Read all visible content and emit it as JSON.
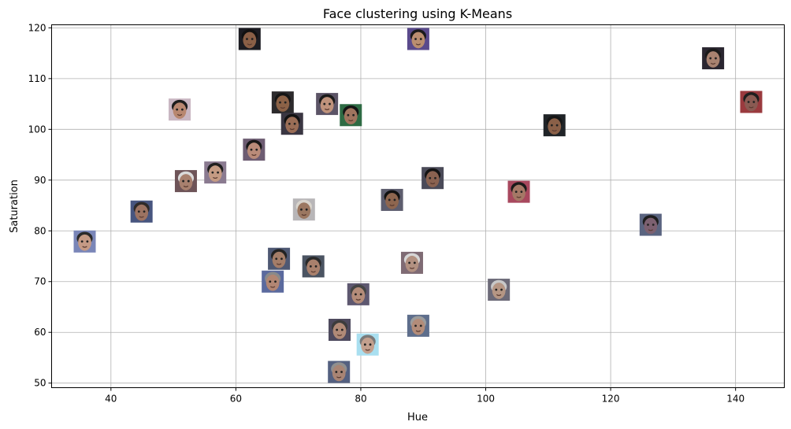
{
  "chart_data": {
    "type": "scatter",
    "title": "Face clustering using K-Means",
    "xlabel": "Hue",
    "ylabel": "Saturation",
    "xlim": [
      30.5,
      147.8
    ],
    "ylim": [
      49.1,
      120.6
    ],
    "xticks": [
      40,
      60,
      80,
      100,
      120,
      140
    ],
    "yticks": [
      50,
      60,
      70,
      80,
      90,
      100,
      110,
      120
    ],
    "grid": true,
    "marker": "face-thumbnail",
    "points": [
      {
        "x": 35.8,
        "y": 77.9,
        "skin": "#c59a85",
        "hair": "#2a2a2a",
        "bg": "#7a86b8"
      },
      {
        "x": 44.9,
        "y": 83.8,
        "skin": "#9c7362",
        "hair": "#2e2a28",
        "bg": "#47557f"
      },
      {
        "x": 51.0,
        "y": 103.9,
        "skin": "#b88770",
        "hair": "#1d1d1d",
        "bg": "#c9b6c2"
      },
      {
        "x": 52.0,
        "y": 89.8,
        "skin": "#a8806e",
        "hair": "#dadada",
        "bg": "#6e5458"
      },
      {
        "x": 56.7,
        "y": 91.5,
        "skin": "#c59b83",
        "hair": "#1f1f1f",
        "bg": "#8a7a90"
      },
      {
        "x": 62.2,
        "y": 117.8,
        "skin": "#8a5f46",
        "hair": "#111111",
        "bg": "#1c1c22"
      },
      {
        "x": 62.9,
        "y": 96.0,
        "skin": "#b98b79",
        "hair": "#181818",
        "bg": "#6d5c72"
      },
      {
        "x": 65.9,
        "y": 70.0,
        "skin": "#b28673",
        "hair": "#8a8a8a",
        "bg": "#5b6a9e"
      },
      {
        "x": 66.9,
        "y": 74.5,
        "skin": "#a47d68",
        "hair": "#222222",
        "bg": "#4e5873"
      },
      {
        "x": 67.5,
        "y": 105.3,
        "skin": "#8c6247",
        "hair": "#151515",
        "bg": "#2c2a2c"
      },
      {
        "x": 69.0,
        "y": 101.1,
        "skin": "#9a6d56",
        "hair": "#121212",
        "bg": "#3a3642"
      },
      {
        "x": 70.9,
        "y": 84.2,
        "skin": "#9b7760",
        "hair": "#d8d4cc",
        "bg": "#b8b6b8"
      },
      {
        "x": 72.4,
        "y": 73.0,
        "skin": "#a9806c",
        "hair": "#2a2a2a",
        "bg": "#4b5462"
      },
      {
        "x": 74.6,
        "y": 105.0,
        "skin": "#bf927b",
        "hair": "#1a1a1a",
        "bg": "#5c5466"
      },
      {
        "x": 76.5,
        "y": 52.2,
        "skin": "#a88474",
        "hair": "#8f8f8f",
        "bg": "#546080"
      },
      {
        "x": 76.6,
        "y": 60.5,
        "skin": "#b08a77",
        "hair": "#3c3c3c",
        "bg": "#4e4a5e"
      },
      {
        "x": 78.4,
        "y": 102.8,
        "skin": "#a0745e",
        "hair": "#141414",
        "bg": "#2e6b44"
      },
      {
        "x": 79.6,
        "y": 67.5,
        "skin": "#b48c79",
        "hair": "#444444",
        "bg": "#5e5870"
      },
      {
        "x": 81.1,
        "y": 57.6,
        "skin": "#c3a08e",
        "hair": "#7a7a7a",
        "bg": "#a9dff0"
      },
      {
        "x": 85.0,
        "y": 86.1,
        "skin": "#8e664f",
        "hair": "#121212",
        "bg": "#5d5d6e"
      },
      {
        "x": 88.2,
        "y": 73.7,
        "skin": "#b29181",
        "hair": "#d6d6d6",
        "bg": "#7f6b74"
      },
      {
        "x": 89.2,
        "y": 61.3,
        "skin": "#b38c79",
        "hair": "#9c9c9c",
        "bg": "#5e6e8c"
      },
      {
        "x": 89.2,
        "y": 117.8,
        "skin": "#ba8e70",
        "hair": "#1a1a1a",
        "bg": "#5a4a8c"
      },
      {
        "x": 91.5,
        "y": 90.4,
        "skin": "#8a6250",
        "hair": "#141414",
        "bg": "#4a4a58"
      },
      {
        "x": 102.1,
        "y": 68.4,
        "skin": "#b59684",
        "hair": "#c8c8c8",
        "bg": "#6c6a78"
      },
      {
        "x": 105.3,
        "y": 87.7,
        "skin": "#a57866",
        "hair": "#1a1a1a",
        "bg": "#a8485e"
      },
      {
        "x": 111.0,
        "y": 100.8,
        "skin": "#8a6048",
        "hair": "#161616",
        "bg": "#202428"
      },
      {
        "x": 126.4,
        "y": 81.2,
        "skin": "#7c6070",
        "hair": "#1e1e1e",
        "bg": "#5a6480"
      },
      {
        "x": 136.4,
        "y": 114.0,
        "skin": "#a88270",
        "hair": "#1a1a1a",
        "bg": "#2a2630"
      },
      {
        "x": 142.5,
        "y": 105.4,
        "skin": "#8a5a52",
        "hair": "#1e1e1e",
        "bg": "#9a3a3e"
      }
    ]
  }
}
